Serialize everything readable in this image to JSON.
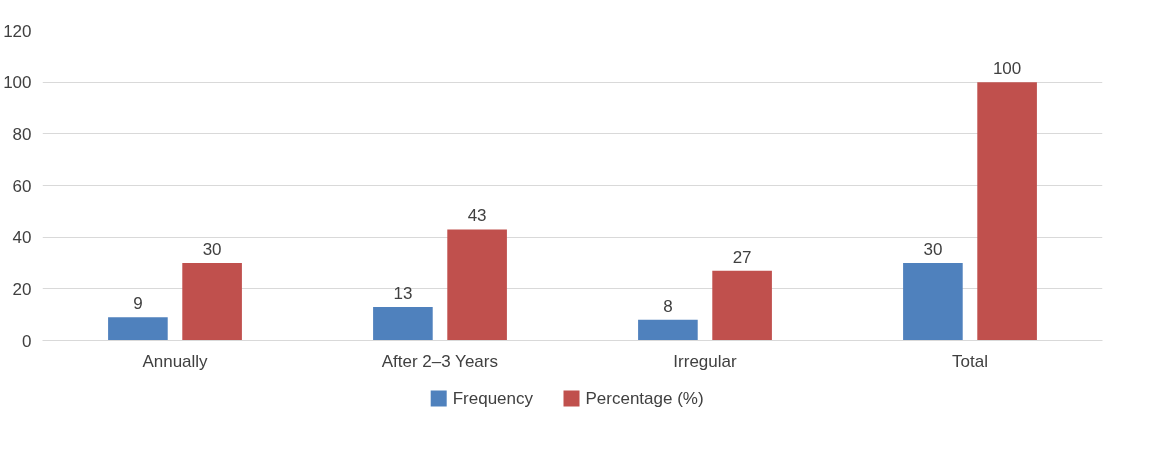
{
  "chart_data": {
    "type": "bar",
    "categories": [
      "Annually",
      "After 2–3 Years",
      "Irregular",
      "Total"
    ],
    "series": [
      {
        "name": "Frequency",
        "color": "#4f81bd",
        "values": [
          9,
          13,
          8,
          30
        ]
      },
      {
        "name": "Percentage (%)",
        "color": "#c0504d",
        "values": [
          30,
          43,
          27,
          100
        ]
      }
    ],
    "ylim": [
      0,
      120
    ],
    "yticks": [
      0,
      20,
      40,
      60,
      80,
      100,
      120
    ],
    "grid": "y",
    "legend": "bottom",
    "data_labels": true
  }
}
